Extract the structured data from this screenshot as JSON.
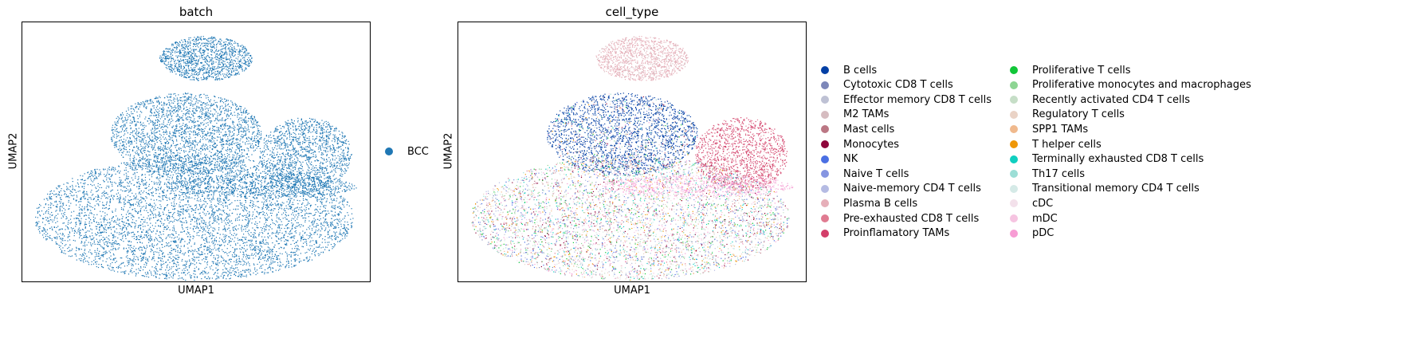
{
  "chart_data": [
    {
      "type": "scatter",
      "title": "batch",
      "xlabel": "UMAP1",
      "ylabel": "UMAP2",
      "grid": false,
      "legend_position": "right",
      "series": [
        {
          "name": "BCC",
          "color": "#1f77b4"
        }
      ]
    },
    {
      "type": "scatter",
      "title": "cell_type",
      "xlabel": "UMAP1",
      "ylabel": "UMAP2",
      "grid": false,
      "legend_position": "right",
      "series": [
        {
          "name": "B cells",
          "color": "#023fa5"
        },
        {
          "name": "Cytotoxic CD8 T cells",
          "color": "#7d87b9"
        },
        {
          "name": "Effector memory CD8 T cells",
          "color": "#bec1d4"
        },
        {
          "name": "M2 TAMs",
          "color": "#d6bcc0"
        },
        {
          "name": "Mast cells",
          "color": "#bb7784"
        },
        {
          "name": "Monocytes",
          "color": "#8e063b"
        },
        {
          "name": "NK",
          "color": "#4a6fe3"
        },
        {
          "name": "Naive T cells",
          "color": "#8595e1"
        },
        {
          "name": "Naive-memory CD4 T cells",
          "color": "#b5bbe3"
        },
        {
          "name": "Plasma B cells",
          "color": "#e6afb9"
        },
        {
          "name": "Pre-exhausted CD8 T cells",
          "color": "#e07b91"
        },
        {
          "name": "Proinflamatory TAMs",
          "color": "#d33f6a"
        },
        {
          "name": "Proliferative T cells",
          "color": "#11c638"
        },
        {
          "name": "Proliferative monocytes and macrophages",
          "color": "#8dd593"
        },
        {
          "name": "Recently activated CD4 T cells",
          "color": "#c6dec7"
        },
        {
          "name": "Regulatory T cells",
          "color": "#ead3c6"
        },
        {
          "name": "SPP1 TAMs",
          "color": "#f0b98d"
        },
        {
          "name": "T helper cells",
          "color": "#ef9708"
        },
        {
          "name": "Terminally exhausted CD8 T cells",
          "color": "#0fcfc0"
        },
        {
          "name": "Th17 cells",
          "color": "#9cded6"
        },
        {
          "name": "Transitional memory CD4 T cells",
          "color": "#d5eae7"
        },
        {
          "name": "cDC",
          "color": "#f3e1eb"
        },
        {
          "name": "mDC",
          "color": "#f6c4e1"
        },
        {
          "name": "pDC",
          "color": "#f79cd4"
        }
      ]
    }
  ]
}
